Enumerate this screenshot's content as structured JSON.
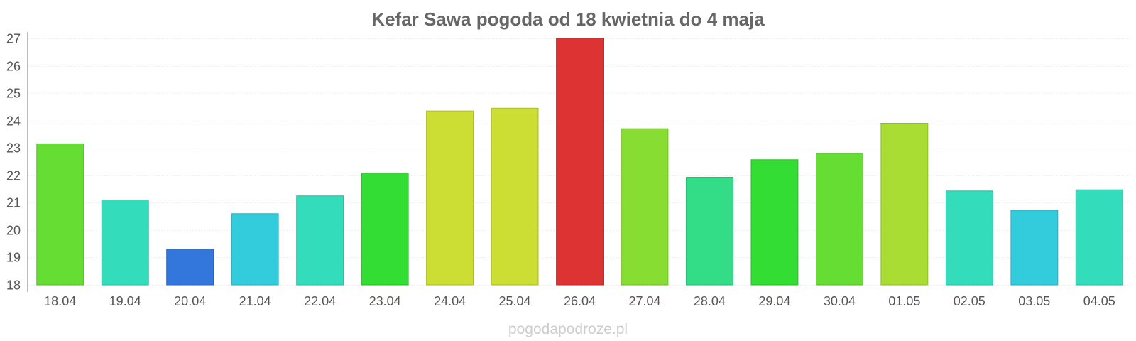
{
  "chart_data": {
    "type": "bar",
    "title": "Kefar Sawa pogoda od 18 kwietnia do 4 maja",
    "xlabel": "",
    "ylabel": "",
    "categories": [
      "18.04",
      "19.04",
      "20.04",
      "21.04",
      "22.04",
      "23.04",
      "24.04",
      "25.04",
      "26.04",
      "27.04",
      "28.04",
      "29.04",
      "30.04",
      "01.05",
      "02.05",
      "03.05",
      "04.05"
    ],
    "values": [
      23.15,
      21.1,
      19.3,
      20.6,
      21.25,
      22.08,
      24.35,
      24.45,
      27.0,
      23.7,
      21.93,
      22.57,
      22.8,
      23.9,
      21.43,
      20.72,
      21.47
    ],
    "colors": [
      "#66dd33",
      "#33ddbb",
      "#3377dd",
      "#33ccdd",
      "#33ddbb",
      "#33dd33",
      "#ccdd33",
      "#ccdd33",
      "#dd3333",
      "#88dd33",
      "#33dd88",
      "#33dd33",
      "#66dd33",
      "#aadd33",
      "#33ddbb",
      "#33ccdd",
      "#33ddbb"
    ],
    "ylim": [
      18,
      27
    ],
    "yticks": [
      "18",
      "19",
      "20",
      "21",
      "22",
      "23",
      "24",
      "25",
      "26",
      "27"
    ],
    "grid": true,
    "legend": "none"
  },
  "watermark": "pogodapodroze.pl"
}
